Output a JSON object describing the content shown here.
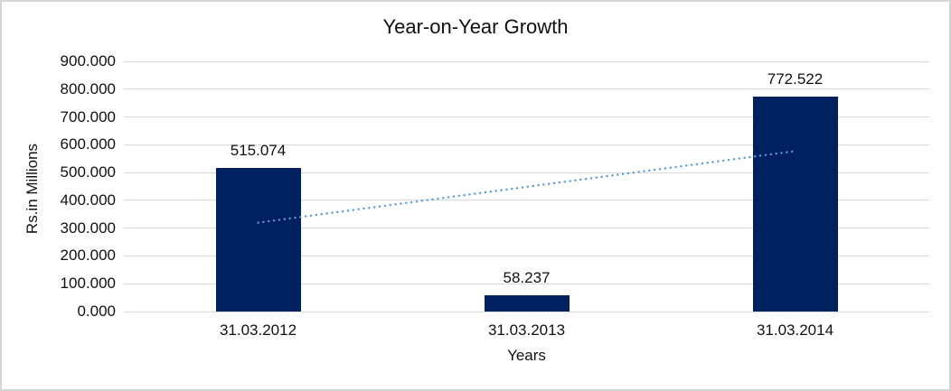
{
  "chart_data": {
    "type": "bar",
    "title": "Year-on-Year Growth",
    "xlabel": "Years",
    "ylabel": "Rs.in Millions",
    "categories": [
      "31.03.2012",
      "31.03.2013",
      "31.03.2014"
    ],
    "values": [
      515.074,
      58.237,
      772.522
    ],
    "data_labels": [
      "515.074",
      "58.237",
      "772.522"
    ],
    "ylim": [
      0,
      900
    ],
    "ytick_step": 100,
    "ytick_labels": [
      "0.000",
      "100.000",
      "200.000",
      "300.000",
      "400.000",
      "500.000",
      "600.000",
      "700.000",
      "800.000",
      "900.000"
    ],
    "grid": true,
    "legend": "none",
    "trendline": {
      "type": "linear",
      "style": "dotted"
    },
    "colors": {
      "bar": "#002060",
      "trendline": "#5b9bd5",
      "gridline": "#d9d9d9",
      "text": "#111111",
      "background": "#ffffff",
      "frame_border": "#d5d5d5"
    }
  }
}
